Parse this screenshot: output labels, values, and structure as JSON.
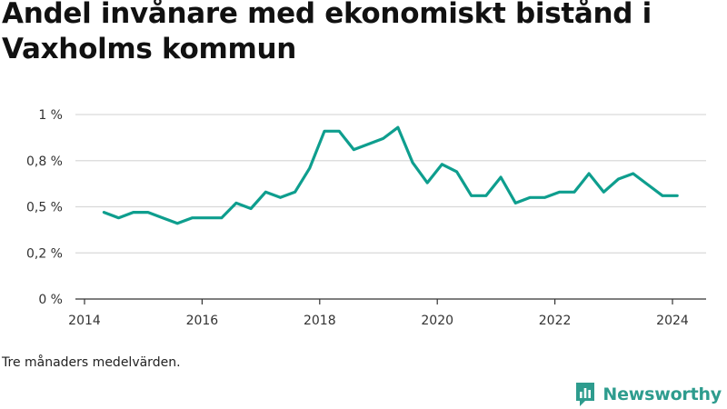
{
  "title": "Andel invånare med ekonomiskt bistånd i Vaxholms kommun",
  "footnote": "Tre månaders medelvärden.",
  "brand": {
    "name": "Newsworthy",
    "icon": "newsworthy-logo-icon"
  },
  "colors": {
    "line": "#0e9e8e",
    "grid": "#d9d9d9",
    "axis": "#333333",
    "brand": "#2e9c8e"
  },
  "chart_data": {
    "type": "line",
    "title": "Andel invånare med ekonomiskt bistånd i Vaxholms kommun",
    "xlabel": "",
    "ylabel": "",
    "xlim": [
      2013.95,
      2024.6
    ],
    "ylim": [
      0,
      1
    ],
    "grid": true,
    "x_ticks": [
      2014,
      2016,
      2018,
      2020,
      2022,
      2024
    ],
    "x_tick_labels": [
      "2014",
      "2016",
      "2018",
      "2020",
      "2022",
      "2024"
    ],
    "y_ticks": [
      0,
      0.25,
      0.5,
      0.75,
      1
    ],
    "y_tick_labels": [
      "0 %",
      "0,2 %",
      "0,5 %",
      "0,8 %",
      "1 %"
    ],
    "series": [
      {
        "x": [
          2014.33,
          2014.58,
          2014.83,
          2015.08,
          2015.33,
          2015.58,
          2015.83,
          2016.08,
          2016.33,
          2016.58,
          2016.83,
          2017.08,
          2017.33,
          2017.58,
          2017.83,
          2018.08,
          2018.33,
          2018.58,
          2018.83,
          2019.08,
          2019.33,
          2019.58,
          2019.83,
          2020.08,
          2020.33,
          2020.58,
          2020.83,
          2021.08,
          2021.33,
          2021.58,
          2021.83,
          2022.08,
          2022.33,
          2022.58,
          2022.83,
          2023.08,
          2023.33,
          2023.58,
          2023.83,
          2024.08
        ],
        "values": [
          0.47,
          0.44,
          0.47,
          0.47,
          0.44,
          0.41,
          0.44,
          0.44,
          0.44,
          0.52,
          0.49,
          0.58,
          0.55,
          0.58,
          0.71,
          0.91,
          0.91,
          0.81,
          0.84,
          0.87,
          0.93,
          0.74,
          0.63,
          0.73,
          0.69,
          0.56,
          0.56,
          0.66,
          0.52,
          0.55,
          0.55,
          0.58,
          0.58,
          0.68,
          0.58,
          0.65,
          0.68,
          0.62,
          0.56,
          0.56
        ]
      }
    ]
  }
}
